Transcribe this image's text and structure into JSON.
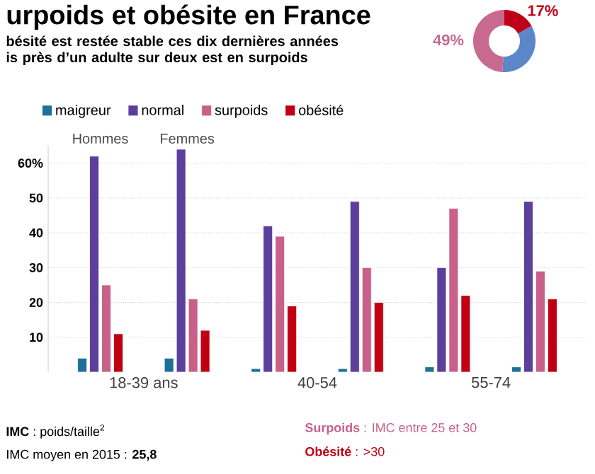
{
  "chart_data": [
    {
      "type": "bar",
      "title": "urpoids et obésite en France",
      "subtitle": "bésité est restée stable ces dix dernières années\nis près d’un adulte sur deux est en surpoids",
      "categories": [
        "Hommes",
        "Femmes",
        null,
        null,
        null,
        null
      ],
      "series": [
        {
          "name": "maigreur",
          "color": "#1f6f9a",
          "values": [
            4,
            4,
            1,
            1,
            1.5,
            1.5
          ]
        },
        {
          "name": "normal",
          "color": "#5b3f9a",
          "values": [
            62,
            64,
            42,
            49,
            30,
            49
          ]
        },
        {
          "name": "surpoids",
          "color": "#c8608a",
          "values": [
            25,
            21,
            39,
            30,
            47,
            29
          ]
        },
        {
          "name": "obésité",
          "color": "#c00012",
          "values": [
            11,
            12,
            19,
            20,
            22,
            21
          ]
        }
      ],
      "ylim": [
        0,
        65
      ],
      "yticks": [
        10,
        20,
        30,
        40,
        50,
        {
          "value": 60,
          "label": "60%"
        }
      ],
      "grid": "y",
      "legend": "top",
      "annotations": [
        "18-39 ans",
        "40-54",
        "55-74",
        "**IMC** : poids/taille$^{2}$",
        "IMC moyen en 2015 : **25,8**",
        "**Surpoids** : IMC entre 25 et 30",
        "**Obésité** : >30"
      ]
    },
    {
      "type": "donut",
      "categories": [
        null,
        null,
        null
      ],
      "values": [
        17,
        34,
        49
      ],
      "colors": [
        "#c00018",
        "#5b86c8",
        "#c86a90"
      ],
      "value_labels": [
        "17%",
        null,
        "49%"
      ]
    }
  ]
}
